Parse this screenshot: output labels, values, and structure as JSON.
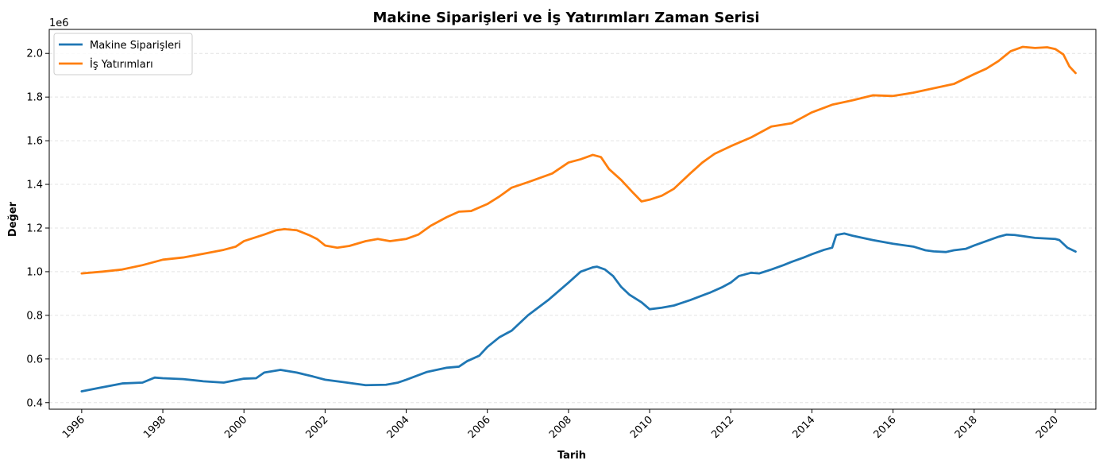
{
  "chart_data": {
    "type": "line",
    "title": "Makine Siparişleri ve İş Yatırımları Zaman Serisi",
    "xlabel": "Tarih",
    "ylabel": "Değer",
    "y_offset_label": "1e6",
    "xlim": [
      1995.2,
      2021.0
    ],
    "ylim": [
      370000,
      2110000
    ],
    "x_ticks": [
      1996,
      1998,
      2000,
      2002,
      2004,
      2006,
      2008,
      2010,
      2012,
      2014,
      2016,
      2018,
      2020
    ],
    "x_tick_labels": [
      "1996",
      "1998",
      "2000",
      "2002",
      "2004",
      "2006",
      "2008",
      "2010",
      "2012",
      "2014",
      "2016",
      "2018",
      "2020"
    ],
    "y_ticks": [
      400000,
      600000,
      800000,
      1000000,
      1200000,
      1400000,
      1600000,
      1800000,
      2000000
    ],
    "y_tick_labels": [
      "0.4",
      "0.6",
      "0.8",
      "1.0",
      "1.2",
      "1.4",
      "1.6",
      "1.8",
      "2.0"
    ],
    "grid": "y-dashed",
    "legend_position": "top-left",
    "series": [
      {
        "name": "Makine Siparişleri",
        "color": "#1f77b4",
        "points": [
          [
            1996.0,
            452000
          ],
          [
            1996.5,
            470000
          ],
          [
            1997.0,
            488000
          ],
          [
            1997.5,
            492000
          ],
          [
            1997.8,
            515000
          ],
          [
            1998.0,
            512000
          ],
          [
            1998.5,
            508000
          ],
          [
            1999.0,
            498000
          ],
          [
            1999.5,
            492000
          ],
          [
            2000.0,
            510000
          ],
          [
            2000.3,
            512000
          ],
          [
            2000.5,
            538000
          ],
          [
            2000.9,
            550000
          ],
          [
            2001.3,
            538000
          ],
          [
            2001.7,
            520000
          ],
          [
            2002.0,
            505000
          ],
          [
            2002.5,
            493000
          ],
          [
            2003.0,
            480000
          ],
          [
            2003.5,
            482000
          ],
          [
            2003.8,
            492000
          ],
          [
            2004.0,
            505000
          ],
          [
            2004.5,
            540000
          ],
          [
            2005.0,
            560000
          ],
          [
            2005.3,
            565000
          ],
          [
            2005.5,
            590000
          ],
          [
            2005.8,
            615000
          ],
          [
            2006.0,
            655000
          ],
          [
            2006.3,
            700000
          ],
          [
            2006.6,
            730000
          ],
          [
            2006.8,
            765000
          ],
          [
            2007.0,
            800000
          ],
          [
            2007.5,
            870000
          ],
          [
            2008.0,
            950000
          ],
          [
            2008.3,
            1000000
          ],
          [
            2008.6,
            1020000
          ],
          [
            2008.7,
            1023000
          ],
          [
            2008.9,
            1010000
          ],
          [
            2009.1,
            980000
          ],
          [
            2009.3,
            930000
          ],
          [
            2009.5,
            895000
          ],
          [
            2009.8,
            860000
          ],
          [
            2010.0,
            828000
          ],
          [
            2010.3,
            835000
          ],
          [
            2010.6,
            845000
          ],
          [
            2011.0,
            870000
          ],
          [
            2011.5,
            905000
          ],
          [
            2011.8,
            930000
          ],
          [
            2012.0,
            950000
          ],
          [
            2012.2,
            980000
          ],
          [
            2012.5,
            995000
          ],
          [
            2012.7,
            992000
          ],
          [
            2013.0,
            1010000
          ],
          [
            2013.3,
            1030000
          ],
          [
            2013.5,
            1045000
          ],
          [
            2013.8,
            1065000
          ],
          [
            2014.0,
            1080000
          ],
          [
            2014.3,
            1100000
          ],
          [
            2014.5,
            1110000
          ],
          [
            2014.6,
            1168000
          ],
          [
            2014.8,
            1175000
          ],
          [
            2015.0,
            1165000
          ],
          [
            2015.5,
            1145000
          ],
          [
            2016.0,
            1128000
          ],
          [
            2016.5,
            1115000
          ],
          [
            2016.8,
            1098000
          ],
          [
            2017.0,
            1093000
          ],
          [
            2017.3,
            1090000
          ],
          [
            2017.5,
            1098000
          ],
          [
            2017.8,
            1105000
          ],
          [
            2018.0,
            1120000
          ],
          [
            2018.3,
            1140000
          ],
          [
            2018.6,
            1160000
          ],
          [
            2018.8,
            1170000
          ],
          [
            2019.0,
            1168000
          ],
          [
            2019.5,
            1155000
          ],
          [
            2020.0,
            1150000
          ],
          [
            2020.1,
            1145000
          ],
          [
            2020.3,
            1110000
          ],
          [
            2020.5,
            1092000
          ]
        ]
      },
      {
        "name": "İş Yatırımları",
        "color": "#ff7f0e",
        "points": [
          [
            1996.0,
            992000
          ],
          [
            1996.5,
            1000000
          ],
          [
            1997.0,
            1010000
          ],
          [
            1997.5,
            1030000
          ],
          [
            1998.0,
            1055000
          ],
          [
            1998.5,
            1065000
          ],
          [
            1999.0,
            1082000
          ],
          [
            1999.5,
            1100000
          ],
          [
            1999.8,
            1115000
          ],
          [
            2000.0,
            1140000
          ],
          [
            2000.5,
            1170000
          ],
          [
            2000.8,
            1190000
          ],
          [
            2001.0,
            1195000
          ],
          [
            2001.3,
            1190000
          ],
          [
            2001.6,
            1168000
          ],
          [
            2001.8,
            1150000
          ],
          [
            2002.0,
            1120000
          ],
          [
            2002.3,
            1110000
          ],
          [
            2002.6,
            1118000
          ],
          [
            2003.0,
            1140000
          ],
          [
            2003.3,
            1150000
          ],
          [
            2003.6,
            1140000
          ],
          [
            2004.0,
            1150000
          ],
          [
            2004.3,
            1170000
          ],
          [
            2004.6,
            1210000
          ],
          [
            2005.0,
            1250000
          ],
          [
            2005.3,
            1275000
          ],
          [
            2005.6,
            1278000
          ],
          [
            2006.0,
            1310000
          ],
          [
            2006.3,
            1345000
          ],
          [
            2006.6,
            1385000
          ],
          [
            2007.0,
            1410000
          ],
          [
            2007.3,
            1430000
          ],
          [
            2007.6,
            1450000
          ],
          [
            2008.0,
            1500000
          ],
          [
            2008.3,
            1515000
          ],
          [
            2008.6,
            1535000
          ],
          [
            2008.8,
            1525000
          ],
          [
            2009.0,
            1470000
          ],
          [
            2009.3,
            1420000
          ],
          [
            2009.6,
            1360000
          ],
          [
            2009.8,
            1322000
          ],
          [
            2010.0,
            1330000
          ],
          [
            2010.3,
            1348000
          ],
          [
            2010.6,
            1380000
          ],
          [
            2011.0,
            1450000
          ],
          [
            2011.3,
            1500000
          ],
          [
            2011.6,
            1540000
          ],
          [
            2012.0,
            1575000
          ],
          [
            2012.5,
            1615000
          ],
          [
            2013.0,
            1665000
          ],
          [
            2013.5,
            1680000
          ],
          [
            2014.0,
            1730000
          ],
          [
            2014.5,
            1765000
          ],
          [
            2015.0,
            1785000
          ],
          [
            2015.5,
            1808000
          ],
          [
            2016.0,
            1805000
          ],
          [
            2016.5,
            1820000
          ],
          [
            2017.0,
            1840000
          ],
          [
            2017.5,
            1860000
          ],
          [
            2018.0,
            1905000
          ],
          [
            2018.3,
            1930000
          ],
          [
            2018.6,
            1965000
          ],
          [
            2018.9,
            2010000
          ],
          [
            2019.2,
            2030000
          ],
          [
            2019.5,
            2025000
          ],
          [
            2019.8,
            2028000
          ],
          [
            2020.0,
            2020000
          ],
          [
            2020.2,
            1995000
          ],
          [
            2020.35,
            1940000
          ],
          [
            2020.5,
            1910000
          ]
        ]
      }
    ]
  }
}
